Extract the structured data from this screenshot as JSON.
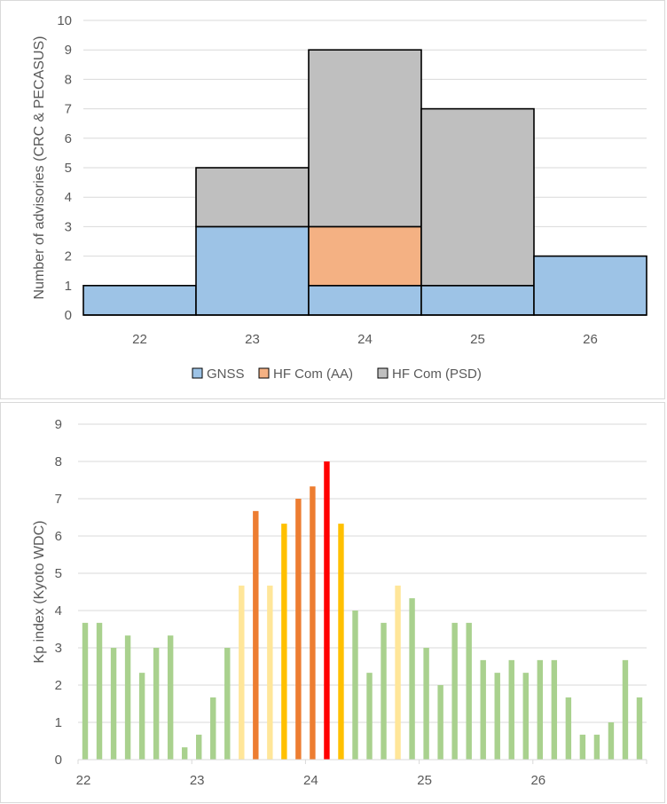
{
  "chart_data": [
    {
      "type": "bar",
      "stacked": true,
      "title": "",
      "xlabel": "",
      "ylabel": "Number of advisories (CRC & PECASUS)",
      "categories": [
        "22",
        "23",
        "24",
        "25",
        "26"
      ],
      "ylim": [
        0,
        10
      ],
      "yticks": [
        "0",
        "1",
        "2",
        "3",
        "4",
        "5",
        "6",
        "7",
        "8",
        "9",
        "10"
      ],
      "grid": true,
      "legend_position": "bottom",
      "series": [
        {
          "name": "GNSS",
          "color": "#9dc3e6",
          "values": [
            1,
            3,
            1,
            1,
            2
          ]
        },
        {
          "name": "HF Com (AA)",
          "color": "#f4b183",
          "values": [
            0,
            0,
            2,
            0,
            0
          ]
        },
        {
          "name": "HF Com (PSD)",
          "color": "#bfbfbf",
          "values": [
            0,
            2,
            6,
            6,
            0
          ]
        }
      ]
    },
    {
      "type": "bar",
      "title": "",
      "xlabel": "",
      "ylabel": "Kp index (Kyoto WDC)",
      "xlim": [
        22,
        27
      ],
      "ylim": [
        0,
        9
      ],
      "xticks": [
        "22",
        "23",
        "24",
        "25",
        "26"
      ],
      "yticks": [
        "0",
        "1",
        "2",
        "3",
        "4",
        "5",
        "6",
        "7",
        "8",
        "9"
      ],
      "grid": true,
      "bar_width_days": 0.05,
      "x": [
        22.0625,
        22.1875,
        22.3125,
        22.4375,
        22.5625,
        22.6875,
        22.8125,
        22.9375,
        23.0625,
        23.1875,
        23.3125,
        23.4375,
        23.5625,
        23.6875,
        23.8125,
        23.9375,
        24.0625,
        24.1875,
        24.3125,
        24.4375,
        24.5625,
        24.6875,
        24.8125,
        24.9375,
        25.0625,
        25.1875,
        25.3125,
        25.4375,
        25.5625,
        25.6875,
        25.8125,
        25.9375,
        26.0625,
        26.1875,
        26.3125,
        26.4375,
        26.5625,
        26.6875,
        26.8125,
        26.9375
      ],
      "values": [
        3.67,
        3.67,
        3,
        3.33,
        2.33,
        3,
        3.33,
        0.33,
        0.67,
        1.67,
        3,
        4.67,
        6.67,
        4.67,
        6.33,
        7,
        7.33,
        8,
        6.33,
        4,
        2.33,
        3.67,
        4.67,
        4.33,
        3,
        2,
        3.67,
        3.67,
        2.67,
        2.33,
        2.67,
        2.33,
        2.67,
        2.67,
        1.67,
        0.67,
        0.67,
        1,
        2.67,
        1.67
      ],
      "colors": [
        "#a9d18e",
        "#a9d18e",
        "#a9d18e",
        "#a9d18e",
        "#a9d18e",
        "#a9d18e",
        "#a9d18e",
        "#a9d18e",
        "#a9d18e",
        "#a9d18e",
        "#a9d18e",
        "#ffe699",
        "#ed7d31",
        "#ffe699",
        "#ffc000",
        "#ed7d31",
        "#ed7d31",
        "#ff0000",
        "#ffc000",
        "#a9d18e",
        "#a9d18e",
        "#a9d18e",
        "#ffe699",
        "#a9d18e",
        "#a9d18e",
        "#a9d18e",
        "#a9d18e",
        "#a9d18e",
        "#a9d18e",
        "#a9d18e",
        "#a9d18e",
        "#a9d18e",
        "#a9d18e",
        "#a9d18e",
        "#a9d18e",
        "#a9d18e",
        "#a9d18e",
        "#a9d18e",
        "#a9d18e",
        "#a9d18e"
      ]
    }
  ]
}
